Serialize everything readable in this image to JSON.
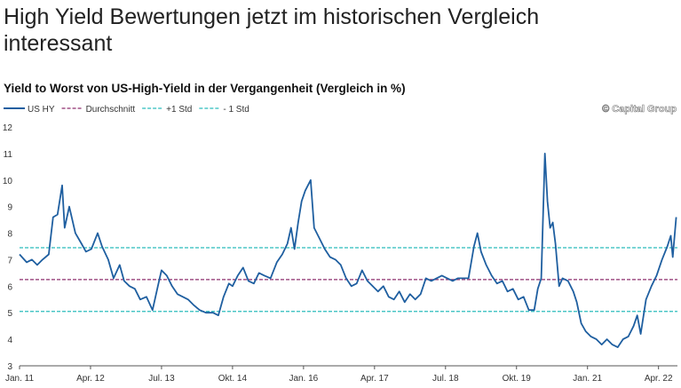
{
  "header": {
    "title_line1": "High Yield Bewertungen jetzt im historischen Vergleich",
    "title_line2": "interessant"
  },
  "watermark": "© Capital Group",
  "chart_data": {
    "type": "line",
    "title": "Yield to Worst von US-High-Yield in der Vergangenheit (Vergleich in %)",
    "xlabel": "",
    "ylabel": "",
    "ylim": [
      3,
      12
    ],
    "yticks": [
      3,
      4,
      5,
      6,
      7,
      8,
      9,
      10,
      11,
      12
    ],
    "grid": false,
    "legend_position": "top-left",
    "xticks": [
      {
        "label": "Jan. 11",
        "date": "2011-01-01"
      },
      {
        "label": "Apr. 12",
        "date": "2012-04-01"
      },
      {
        "label": "Jul. 13",
        "date": "2013-07-01"
      },
      {
        "label": "Okt. 14",
        "date": "2014-10-01"
      },
      {
        "label": "Jan. 16",
        "date": "2016-01-01"
      },
      {
        "label": "Apr. 17",
        "date": "2017-04-01"
      },
      {
        "label": "Jul. 18",
        "date": "2018-07-01"
      },
      {
        "label": "Okt. 19",
        "date": "2019-10-01"
      },
      {
        "label": "Jan. 21",
        "date": "2021-01-01"
      },
      {
        "label": "Apr. 22",
        "date": "2022-04-01"
      }
    ],
    "xlim": [
      "2011-01-01",
      "2022-08-01"
    ],
    "series": [
      {
        "name": "US HY",
        "color": "#1f5fa0",
        "style": "solid",
        "points": [
          [
            "2011-01-01",
            7.2
          ],
          [
            "2011-02-16",
            6.9
          ],
          [
            "2011-03-19",
            7.0
          ],
          [
            "2011-04-23",
            6.8
          ],
          [
            "2011-05-27",
            7.0
          ],
          [
            "2011-07-06",
            7.2
          ],
          [
            "2011-08-04",
            8.6
          ],
          [
            "2011-09-02",
            8.7
          ],
          [
            "2011-10-01",
            9.8
          ],
          [
            "2011-10-17",
            8.2
          ],
          [
            "2011-11-16",
            9.0
          ],
          [
            "2011-12-25",
            8.0
          ],
          [
            "2012-02-04",
            7.6
          ],
          [
            "2012-03-02",
            7.3
          ],
          [
            "2012-04-06",
            7.4
          ],
          [
            "2012-05-16",
            8.0
          ],
          [
            "2012-06-14",
            7.5
          ],
          [
            "2012-07-23",
            7.0
          ],
          [
            "2012-08-27",
            6.3
          ],
          [
            "2012-10-06",
            6.8
          ],
          [
            "2012-11-04",
            6.2
          ],
          [
            "2012-12-08",
            6.0
          ],
          [
            "2013-01-12",
            5.9
          ],
          [
            "2013-02-16",
            5.5
          ],
          [
            "2013-03-25",
            5.6
          ],
          [
            "2013-05-04",
            5.1
          ],
          [
            "2013-06-08",
            6.0
          ],
          [
            "2013-07-01",
            6.6
          ],
          [
            "2013-08-04",
            6.4
          ],
          [
            "2013-09-08",
            6.0
          ],
          [
            "2013-10-12",
            5.7
          ],
          [
            "2013-11-16",
            5.6
          ],
          [
            "2013-12-19",
            5.5
          ],
          [
            "2014-01-23",
            5.3
          ],
          [
            "2014-03-02",
            5.1
          ],
          [
            "2014-04-12",
            5.0
          ],
          [
            "2014-05-27",
            5.0
          ],
          [
            "2014-07-01",
            4.9
          ],
          [
            "2014-08-04",
            5.6
          ],
          [
            "2014-09-08",
            6.1
          ],
          [
            "2014-10-01",
            6.0
          ],
          [
            "2014-11-04",
            6.4
          ],
          [
            "2014-12-08",
            6.7
          ],
          [
            "2015-01-12",
            6.2
          ],
          [
            "2015-02-16",
            6.1
          ],
          [
            "2015-03-19",
            6.5
          ],
          [
            "2015-04-23",
            6.4
          ],
          [
            "2015-06-02",
            6.3
          ],
          [
            "2015-07-12",
            6.9
          ],
          [
            "2015-08-16",
            7.2
          ],
          [
            "2015-09-19",
            7.6
          ],
          [
            "2015-10-12",
            8.2
          ],
          [
            "2015-11-04",
            7.4
          ],
          [
            "2015-11-27",
            8.4
          ],
          [
            "2015-12-19",
            9.2
          ],
          [
            "2016-01-12",
            9.6
          ],
          [
            "2016-02-16",
            10.0
          ],
          [
            "2016-03-08",
            8.2
          ],
          [
            "2016-04-12",
            7.8
          ],
          [
            "2016-05-16",
            7.4
          ],
          [
            "2016-06-19",
            7.1
          ],
          [
            "2016-07-23",
            7.0
          ],
          [
            "2016-08-27",
            6.8
          ],
          [
            "2016-10-01",
            6.3
          ],
          [
            "2016-11-04",
            6.0
          ],
          [
            "2016-12-08",
            6.1
          ],
          [
            "2017-01-12",
            6.6
          ],
          [
            "2017-02-16",
            6.2
          ],
          [
            "2017-03-19",
            6.0
          ],
          [
            "2017-04-23",
            5.8
          ],
          [
            "2017-05-27",
            6.0
          ],
          [
            "2017-07-01",
            5.6
          ],
          [
            "2017-08-04",
            5.5
          ],
          [
            "2017-09-08",
            5.8
          ],
          [
            "2017-10-12",
            5.4
          ],
          [
            "2017-11-16",
            5.7
          ],
          [
            "2017-12-19",
            5.5
          ],
          [
            "2018-01-23",
            5.7
          ],
          [
            "2018-02-27",
            6.3
          ],
          [
            "2018-04-01",
            6.2
          ],
          [
            "2018-05-04",
            6.3
          ],
          [
            "2018-06-08",
            6.4
          ],
          [
            "2018-07-12",
            6.3
          ],
          [
            "2018-08-16",
            6.2
          ],
          [
            "2018-09-19",
            6.3
          ],
          [
            "2018-10-23",
            6.3
          ],
          [
            "2018-11-27",
            6.3
          ],
          [
            "2019-01-01",
            7.5
          ],
          [
            "2019-01-23",
            8.0
          ],
          [
            "2019-02-16",
            7.3
          ],
          [
            "2019-03-19",
            6.8
          ],
          [
            "2019-04-23",
            6.4
          ],
          [
            "2019-05-27",
            6.1
          ],
          [
            "2019-07-01",
            6.2
          ],
          [
            "2019-08-04",
            5.8
          ],
          [
            "2019-09-08",
            5.9
          ],
          [
            "2019-10-12",
            5.5
          ],
          [
            "2019-11-16",
            5.6
          ],
          [
            "2019-12-19",
            5.1
          ],
          [
            "2020-01-23",
            5.1
          ],
          [
            "2020-02-16",
            5.9
          ],
          [
            "2020-03-08",
            6.3
          ],
          [
            "2020-04-01",
            11.0
          ],
          [
            "2020-04-17",
            9.2
          ],
          [
            "2020-05-04",
            8.2
          ],
          [
            "2020-05-21",
            8.4
          ],
          [
            "2020-06-08",
            7.6
          ],
          [
            "2020-07-01",
            6.0
          ],
          [
            "2020-07-23",
            6.3
          ],
          [
            "2020-08-27",
            6.2
          ],
          [
            "2020-10-01",
            5.8
          ],
          [
            "2020-10-23",
            5.4
          ],
          [
            "2020-11-21",
            4.6
          ],
          [
            "2020-12-19",
            4.3
          ],
          [
            "2021-01-23",
            4.1
          ],
          [
            "2021-02-27",
            4.0
          ],
          [
            "2021-04-01",
            3.8
          ],
          [
            "2021-05-04",
            4.0
          ],
          [
            "2021-06-08",
            3.8
          ],
          [
            "2021-07-12",
            3.7
          ],
          [
            "2021-08-16",
            4.0
          ],
          [
            "2021-09-19",
            4.1
          ],
          [
            "2021-10-23",
            4.5
          ],
          [
            "2021-11-16",
            4.9
          ],
          [
            "2021-12-08",
            4.2
          ],
          [
            "2022-01-12",
            5.5
          ],
          [
            "2022-02-16",
            6.0
          ],
          [
            "2022-03-19",
            6.4
          ],
          [
            "2022-04-23",
            7.0
          ],
          [
            "2022-05-27",
            7.5
          ],
          [
            "2022-06-19",
            7.9
          ],
          [
            "2022-07-01",
            7.1
          ],
          [
            "2022-07-23",
            8.6
          ]
        ]
      },
      {
        "name": "Durchschnitt",
        "color": "#8e2f6e",
        "style": "dashed",
        "constant": 6.25
      },
      {
        "name": "+1 Std",
        "color": "#2bbcbc",
        "style": "dashed",
        "constant": 7.45
      },
      {
        "name": "- 1 Std",
        "color": "#2bbcbc",
        "style": "dashed",
        "constant": 5.05
      }
    ]
  }
}
